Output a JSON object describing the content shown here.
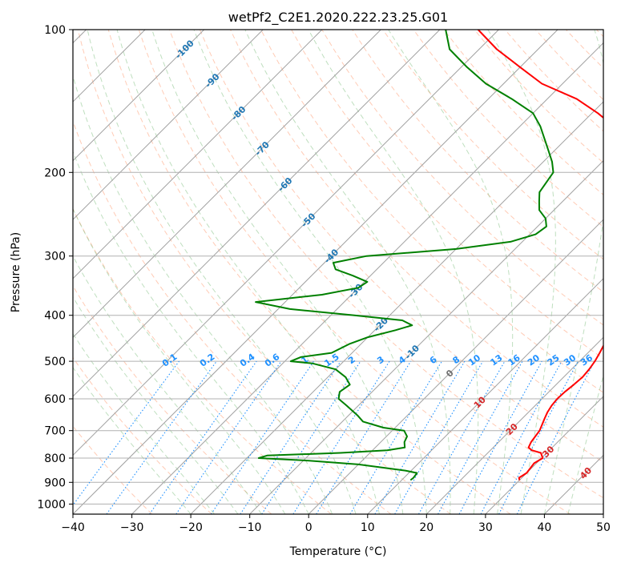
{
  "chart_data": {
    "type": "line",
    "title": "wetPf2_C2E1.2020.222.23.25.G01",
    "xlabel": "Temperature (°C)",
    "ylabel": "Pressure (hPa)",
    "xlim": [
      -40,
      50
    ],
    "ylim": [
      1050,
      100
    ],
    "y_scale": "log",
    "x_ticks": [
      -40,
      -30,
      -20,
      -10,
      0,
      10,
      20,
      30,
      40,
      50
    ],
    "y_ticks": [
      100,
      200,
      300,
      400,
      500,
      600,
      700,
      800,
      900,
      1000
    ],
    "grid": true,
    "colors": {
      "temperature": "#ff0000",
      "dewpoint": "#008000",
      "isotherm": "#a0a0a0",
      "dry_adiabat": "#ff8c5a",
      "moist_adiabat": "#7fbf7f",
      "mixing_ratio": "#1e90ff",
      "isotherm_label": "#1f77b4",
      "warm_isotherm_label": "#d62728",
      "hbox_grid": "#b0b0b0"
    },
    "series": [
      {
        "values": [
          [
            30.0,
            890
          ],
          [
            29.5,
            880
          ],
          [
            30.0,
            860
          ],
          [
            29.8,
            840
          ],
          [
            29.6,
            820
          ],
          [
            30.2,
            800
          ],
          [
            29.0,
            780
          ],
          [
            27.0,
            770
          ],
          [
            26.0,
            760
          ],
          [
            25.5,
            740
          ],
          [
            25.0,
            700
          ],
          [
            24.4,
            680
          ],
          [
            23.8,
            660
          ],
          [
            23.2,
            640
          ],
          [
            22.8,
            620
          ],
          [
            22.6,
            600
          ],
          [
            22.7,
            580
          ],
          [
            23.0,
            560
          ],
          [
            23.2,
            540
          ],
          [
            23.0,
            520
          ],
          [
            22.6,
            500
          ],
          [
            22.0,
            480
          ],
          [
            21.3,
            460
          ],
          [
            20.4,
            440
          ],
          [
            19.5,
            420
          ],
          [
            18.3,
            400
          ],
          [
            17.0,
            380
          ],
          [
            15.6,
            360
          ],
          [
            13.8,
            340
          ],
          [
            12.0,
            320
          ],
          [
            10.0,
            300
          ],
          [
            8.0,
            280
          ],
          [
            5.2,
            260
          ],
          [
            2.5,
            240
          ],
          [
            -0.5,
            220
          ],
          [
            -3.0,
            200
          ],
          [
            -5.8,
            190
          ],
          [
            -8.5,
            180
          ],
          [
            -14.0,
            160
          ],
          [
            -19.0,
            150
          ],
          [
            -25.0,
            140
          ],
          [
            -33.5,
            130
          ],
          [
            -40.0,
            120
          ],
          [
            -47.0,
            110
          ],
          [
            -53.5,
            100
          ]
        ]
      },
      {
        "values": [
          [
            11.5,
            890
          ],
          [
            11.6,
            880
          ],
          [
            11.4,
            860
          ],
          [
            9.0,
            850
          ],
          [
            0.0,
            825
          ],
          [
            -9.0,
            810
          ],
          [
            -18.0,
            800
          ],
          [
            -17.0,
            790
          ],
          [
            -5.0,
            780
          ],
          [
            2.5,
            770
          ],
          [
            5.0,
            760
          ],
          [
            4.5,
            750
          ],
          [
            4.0,
            740
          ],
          [
            3.5,
            720
          ],
          [
            2.0,
            700
          ],
          [
            -2.0,
            690
          ],
          [
            -6.5,
            670
          ],
          [
            -8.5,
            650
          ],
          [
            -12.0,
            620
          ],
          [
            -14.5,
            600
          ],
          [
            -15.5,
            580
          ],
          [
            -15.0,
            560
          ],
          [
            -17.0,
            540
          ],
          [
            -20.0,
            520
          ],
          [
            -25.0,
            505
          ],
          [
            -29.0,
            500
          ],
          [
            -28.0,
            490
          ],
          [
            -23.5,
            480
          ],
          [
            -22.0,
            460
          ],
          [
            -20.0,
            445
          ],
          [
            -16.5,
            430
          ],
          [
            -14.5,
            420
          ],
          [
            -17.0,
            410
          ],
          [
            -26.0,
            400
          ],
          [
            -38.0,
            388
          ],
          [
            -45.0,
            375
          ],
          [
            -35.0,
            362
          ],
          [
            -30.0,
            350
          ],
          [
            -29.5,
            340
          ],
          [
            -33.0,
            330
          ],
          [
            -37.0,
            320
          ],
          [
            -38.5,
            310
          ],
          [
            -34.0,
            300
          ],
          [
            -20.0,
            290
          ],
          [
            -12.0,
            280
          ],
          [
            -9.0,
            270
          ],
          [
            -8.5,
            260
          ],
          [
            -10.0,
            250
          ],
          [
            -12.5,
            240
          ],
          [
            -14.0,
            230
          ],
          [
            -15.5,
            220
          ],
          [
            -16.5,
            200
          ],
          [
            -18.5,
            190
          ],
          [
            -21.0,
            180
          ],
          [
            -26.5,
            160
          ],
          [
            -30.0,
            150
          ],
          [
            -36.0,
            140
          ],
          [
            -43.0,
            130
          ],
          [
            -49.0,
            120
          ],
          [
            -55.0,
            110
          ],
          [
            -59.0,
            100
          ]
        ]
      }
    ],
    "isotherm_labels": [
      "-100",
      "-90",
      "-80",
      "-70",
      "-60",
      "-50",
      "-40",
      "-30",
      "-20",
      "-10"
    ],
    "warm_isotherm_labels": [
      "0",
      "10",
      "20",
      "30",
      "40"
    ],
    "mixing_ratio_labels": [
      "0.1",
      "0.2",
      "0.4",
      "0.6",
      "1",
      "1.5",
      "2",
      "3",
      "4",
      "6",
      "8",
      "10",
      "13",
      "16",
      "20",
      "25",
      "30",
      "36"
    ]
  }
}
